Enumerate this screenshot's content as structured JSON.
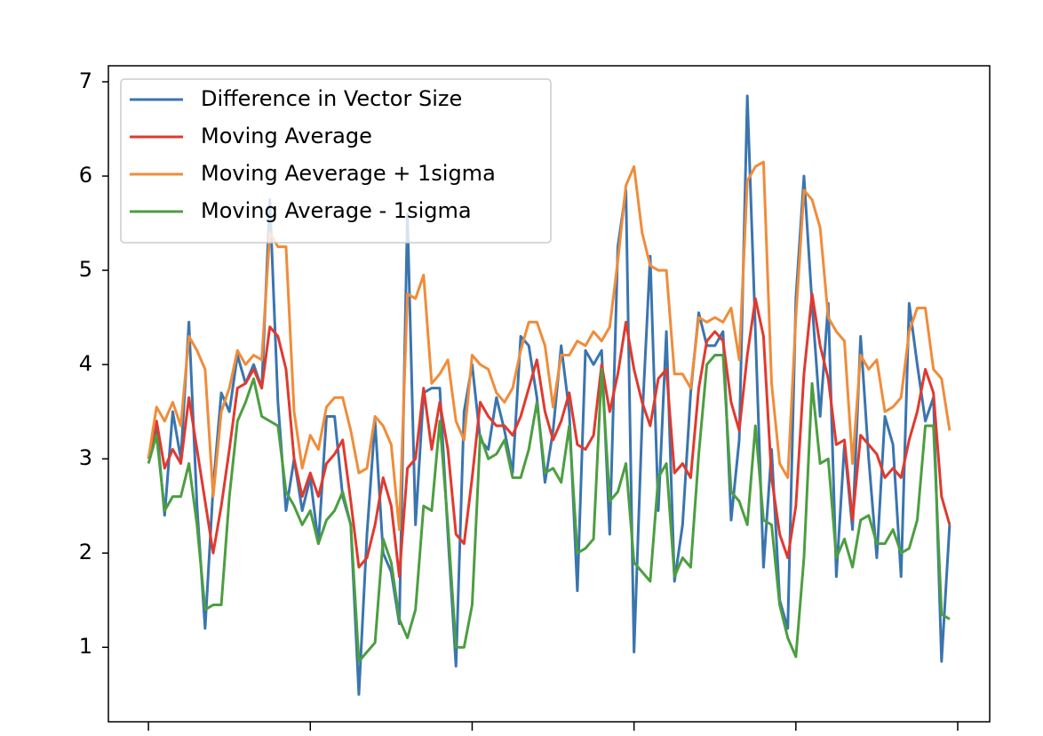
{
  "chart_data": {
    "type": "line",
    "x": [
      0,
      1,
      2,
      3,
      4,
      5,
      6,
      7,
      8,
      9,
      10,
      11,
      12,
      13,
      14,
      15,
      16,
      17,
      18,
      19,
      20,
      21,
      22,
      23,
      24,
      25,
      26,
      27,
      28,
      29,
      30,
      31,
      32,
      33,
      34,
      35,
      36,
      37,
      38,
      39,
      40,
      41,
      42,
      43,
      44,
      45,
      46,
      47,
      48,
      49,
      50,
      51,
      52,
      53,
      54,
      55,
      56,
      57,
      58,
      59,
      60,
      61,
      62,
      63,
      64,
      65,
      66,
      67,
      68,
      69,
      70,
      71,
      72,
      73,
      74,
      75,
      76,
      77,
      78,
      79,
      80,
      81,
      82,
      83,
      84,
      85,
      86,
      87,
      88,
      89,
      90,
      91,
      92,
      93,
      94,
      95,
      96,
      97,
      98,
      99
    ],
    "series": [
      {
        "name": "Difference in Vector Size",
        "color": "#3a75af",
        "values": [
          3.0,
          3.35,
          2.4,
          3.5,
          3.0,
          4.45,
          2.5,
          1.2,
          2.7,
          3.7,
          3.5,
          4.1,
          3.8,
          4.0,
          3.75,
          5.75,
          3.6,
          2.45,
          3.0,
          2.45,
          2.8,
          2.1,
          3.45,
          3.45,
          2.6,
          2.3,
          0.5,
          2.2,
          3.4,
          2.0,
          1.8,
          1.25,
          5.6,
          2.3,
          3.7,
          3.75,
          3.75,
          2.2,
          0.8,
          3.5,
          4.0,
          3.2,
          3.1,
          3.65,
          3.3,
          2.85,
          4.3,
          4.2,
          3.65,
          2.75,
          3.3,
          4.2,
          3.5,
          1.6,
          4.15,
          4.0,
          4.15,
          2.2,
          5.25,
          5.85,
          0.95,
          3.4,
          5.15,
          2.45,
          4.35,
          1.7,
          2.3,
          3.7,
          4.55,
          4.2,
          4.2,
          4.35,
          2.35,
          3.2,
          6.85,
          4.35,
          1.85,
          3.1,
          1.5,
          1.2,
          4.7,
          6.0,
          4.65,
          3.45,
          4.65,
          1.75,
          3.15,
          2.25,
          4.3,
          3.0,
          1.95,
          3.45,
          3.15,
          1.75,
          4.65,
          4.0,
          3.4,
          3.65,
          0.85,
          2.3
        ]
      },
      {
        "name": "Moving Average",
        "color": "#e03a2e",
        "values": [
          3.0,
          3.4,
          2.9,
          3.1,
          2.95,
          3.65,
          3.1,
          2.55,
          2.0,
          2.5,
          3.1,
          3.75,
          3.8,
          3.95,
          3.75,
          4.4,
          4.3,
          3.95,
          3.0,
          2.6,
          2.85,
          2.6,
          2.95,
          3.05,
          3.2,
          2.55,
          1.85,
          1.95,
          2.3,
          2.8,
          2.5,
          1.75,
          2.9,
          3.0,
          3.75,
          3.1,
          3.6,
          3.1,
          2.2,
          2.1,
          2.8,
          3.6,
          3.45,
          3.35,
          3.35,
          3.25,
          3.45,
          3.75,
          4.05,
          3.5,
          3.2,
          3.4,
          3.7,
          3.15,
          3.1,
          3.25,
          4.0,
          3.5,
          3.9,
          4.45,
          3.95,
          3.6,
          3.35,
          3.85,
          3.95,
          2.85,
          2.95,
          2.8,
          3.75,
          4.25,
          4.35,
          4.25,
          3.6,
          3.3,
          4.1,
          4.7,
          4.3,
          2.8,
          2.2,
          1.95,
          2.5,
          3.9,
          4.75,
          4.2,
          3.85,
          3.15,
          3.2,
          2.35,
          3.25,
          3.15,
          3.05,
          2.8,
          2.9,
          2.8,
          3.2,
          3.5,
          3.95,
          3.7,
          2.6,
          2.3
        ]
      },
      {
        "name": "Moving Aeverage + 1sigma",
        "color": "#f08c3a",
        "values": [
          3.0,
          3.55,
          3.4,
          3.6,
          3.35,
          4.3,
          4.15,
          3.95,
          2.6,
          3.5,
          3.75,
          4.15,
          4.0,
          4.1,
          4.05,
          5.4,
          5.25,
          5.25,
          3.5,
          2.9,
          3.25,
          3.1,
          3.55,
          3.65,
          3.65,
          3.3,
          2.85,
          2.9,
          3.45,
          3.35,
          3.15,
          2.25,
          4.75,
          4.7,
          4.95,
          3.8,
          3.9,
          4.05,
          3.4,
          3.2,
          4.1,
          4.0,
          3.95,
          3.7,
          3.6,
          3.75,
          4.15,
          4.45,
          4.45,
          4.2,
          3.55,
          4.1,
          4.1,
          4.25,
          4.2,
          4.35,
          4.25,
          4.4,
          5.1,
          5.9,
          6.1,
          5.4,
          5.05,
          5.0,
          5.0,
          3.9,
          3.9,
          3.75,
          4.5,
          4.45,
          4.5,
          4.45,
          4.6,
          4.05,
          5.95,
          6.1,
          6.15,
          3.8,
          2.95,
          2.8,
          4.5,
          5.85,
          5.75,
          5.45,
          4.5,
          4.35,
          4.25,
          2.95,
          4.1,
          3.95,
          4.05,
          3.5,
          3.55,
          3.65,
          4.35,
          4.6,
          4.6,
          3.95,
          3.85,
          3.3
        ]
      },
      {
        "name": "Moving Average - 1sigma",
        "color": "#4c9e41",
        "values": [
          2.95,
          3.25,
          2.45,
          2.6,
          2.6,
          2.95,
          2.3,
          1.4,
          1.45,
          1.45,
          2.6,
          3.4,
          3.6,
          3.85,
          3.45,
          3.4,
          3.35,
          2.65,
          2.5,
          2.3,
          2.45,
          2.1,
          2.35,
          2.45,
          2.65,
          2.3,
          0.85,
          0.95,
          1.05,
          2.15,
          1.9,
          1.3,
          1.1,
          1.4,
          2.5,
          2.45,
          3.4,
          2.3,
          1.0,
          1.0,
          1.45,
          3.25,
          3.0,
          3.05,
          3.2,
          2.8,
          2.8,
          3.1,
          3.6,
          2.85,
          2.9,
          2.75,
          3.35,
          2.0,
          2.05,
          2.15,
          3.95,
          2.55,
          2.65,
          2.95,
          1.9,
          1.8,
          1.7,
          2.8,
          2.95,
          1.75,
          1.95,
          1.85,
          3.05,
          4.0,
          4.1,
          4.1,
          2.65,
          2.55,
          2.3,
          3.35,
          2.35,
          2.3,
          1.45,
          1.1,
          0.9,
          1.95,
          3.8,
          2.95,
          3.0,
          1.95,
          2.15,
          1.85,
          2.35,
          2.4,
          2.1,
          2.1,
          2.25,
          2.0,
          2.05,
          2.35,
          3.35,
          3.35,
          1.35,
          1.3
        ]
      }
    ],
    "xlim": [
      -4.95,
      103.95
    ],
    "xticks": [
      0,
      20,
      40,
      60,
      80,
      100
    ],
    "ylim": [
      0.21,
      7.17
    ],
    "yticks": [
      1,
      2,
      3,
      4,
      5,
      6,
      7
    ],
    "legend": "upper left"
  }
}
